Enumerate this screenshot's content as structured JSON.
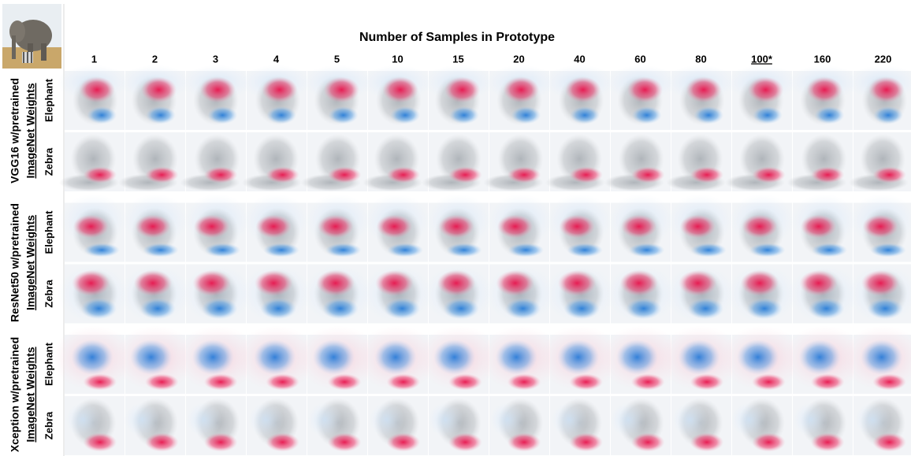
{
  "header": {
    "title": "Number of Samples in Prototype"
  },
  "columns": [
    "1",
    "2",
    "3",
    "4",
    "5",
    "10",
    "15",
    "20",
    "40",
    "60",
    "80",
    "100*",
    "160",
    "220"
  ],
  "highlight": {
    "column": 11,
    "color": "#2a9fd8"
  },
  "groups": [
    {
      "model": "VGG16 w/pretrained",
      "weights": "ImageNet Weights",
      "rows": [
        "Elephant",
        "Zebra"
      ]
    },
    {
      "model": "ResNet50 w/pretrained",
      "weights": "ImageNet Weights",
      "rows": [
        "Elephant",
        "Zebra"
      ]
    },
    {
      "model": "Xception w/pretrained",
      "weights": "ImageNet Weights",
      "rows": [
        "Elephant",
        "Zebra"
      ]
    }
  ]
}
